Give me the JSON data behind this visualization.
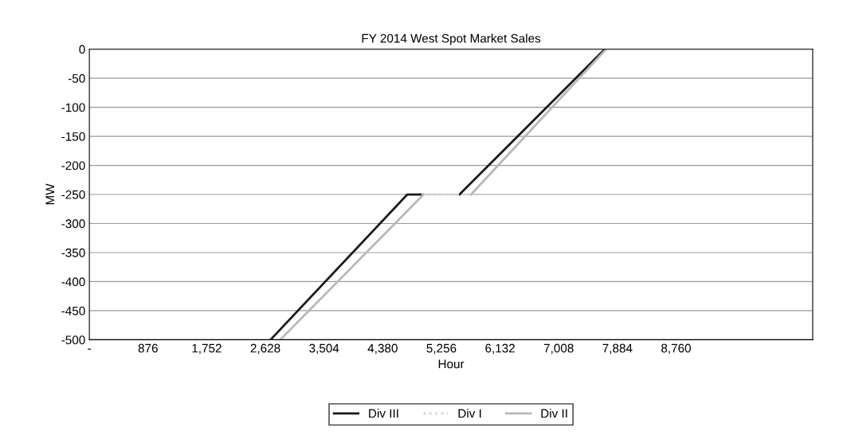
{
  "chart_data": {
    "type": "line",
    "title": "FY 2014 West Spot Market Sales",
    "xlabel": "Hour",
    "ylabel": "MW",
    "xlim": [
      0,
      10800
    ],
    "ylim": [
      -500,
      0
    ],
    "xticks": [
      {
        "value": 0,
        "label": "-"
      },
      {
        "value": 876,
        "label": "876"
      },
      {
        "value": 1752,
        "label": "1,752"
      },
      {
        "value": 2628,
        "label": "2,628"
      },
      {
        "value": 3504,
        "label": "3,504"
      },
      {
        "value": 4380,
        "label": "4,380"
      },
      {
        "value": 5256,
        "label": "5,256"
      },
      {
        "value": 6132,
        "label": "6,132"
      },
      {
        "value": 7008,
        "label": "7,008"
      },
      {
        "value": 7884,
        "label": "7,884"
      },
      {
        "value": 8760,
        "label": "8,760"
      }
    ],
    "yticks": [
      -500,
      -450,
      -400,
      -350,
      -300,
      -250,
      -200,
      -150,
      -100,
      -50,
      0
    ],
    "grid": "y",
    "legend": "bottom",
    "marker": "none",
    "series": [
      {
        "name": "Div III",
        "color": "#1a1a1a",
        "line_style": "solid",
        "x": [
          2705,
          4748,
          4962,
          5100,
          5527,
          7696
        ],
        "values": [
          -500,
          -250,
          -250,
          null,
          -250,
          0
        ]
      },
      {
        "name": "Div I",
        "color": "#d0d0d0",
        "line_style": "dotted",
        "x": [
          4962,
          5527
        ],
        "values": [
          -250,
          -250
        ]
      },
      {
        "name": "Div II",
        "color": "#b8b8b8",
        "line_style": "solid",
        "x": [
          2850,
          4990,
          5100,
          5700,
          7715
        ],
        "values": [
          -500,
          -250,
          null,
          -250,
          0
        ]
      }
    ]
  }
}
